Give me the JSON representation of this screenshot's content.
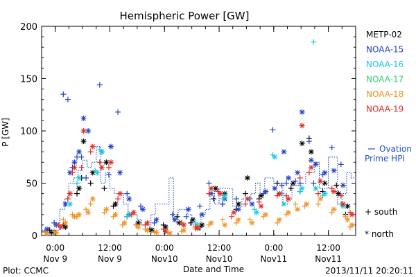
{
  "chart_data": {
    "type": "scatter",
    "title": "Hemispheric Power [GW]",
    "xlabel": "Date and Time",
    "ylabel": "P [GW]",
    "ylim": [
      0,
      200
    ],
    "y_ticks": [
      0,
      50,
      100,
      150,
      200
    ],
    "xlim": [
      "2013-11-08 21:00",
      "2013-11-11 18:00"
    ],
    "x_ticks": [
      {
        "t": "2013-11-09 00:00",
        "time": "0:00",
        "date": "Nov 9"
      },
      {
        "t": "2013-11-09 12:00",
        "time": "12:00",
        "date": "Nov 9"
      },
      {
        "t": "2013-11-10 00:00",
        "time": "0:00",
        "date": "Nov10"
      },
      {
        "t": "2013-11-10 12:00",
        "time": "12:00",
        "date": "Nov10"
      },
      {
        "t": "2013-11-11 00:00",
        "time": "0:00",
        "date": "Nov11"
      },
      {
        "t": "2013-11-11 12:00",
        "time": "12:00",
        "date": "Nov11"
      }
    ],
    "legend": {
      "placement": "right",
      "marker_south": "+ south",
      "marker_north": "* north"
    },
    "ovation": {
      "name": "Ovation Prime HPI",
      "label_line1": "Ovation",
      "label_line2": "Prime HPI",
      "color": "#1f4fd0",
      "x": [
        "2013-11-08 21:00",
        "2013-11-09 01:00",
        "2013-11-09 02:00",
        "2013-11-09 03:00",
        "2013-11-09 04:00",
        "2013-11-09 05:00",
        "2013-11-09 06:00",
        "2013-11-09 07:00",
        "2013-11-09 08:00",
        "2013-11-09 09:00",
        "2013-11-09 10:00",
        "2013-11-09 11:00",
        "2013-11-09 12:00",
        "2013-11-09 13:00",
        "2013-11-09 15:00",
        "2013-11-09 16:00",
        "2013-11-09 18:00",
        "2013-11-09 19:00",
        "2013-11-09 21:00",
        "2013-11-09 22:00",
        "2013-11-10 01:00",
        "2013-11-10 02:00",
        "2013-11-10 03:00",
        "2013-11-10 05:00",
        "2013-11-10 06:00",
        "2013-11-10 07:00",
        "2013-11-10 08:00",
        "2013-11-10 09:00",
        "2013-11-10 10:00",
        "2013-11-10 11:00",
        "2013-11-10 12:00",
        "2013-11-10 15:00",
        "2013-11-10 17:00",
        "2013-11-10 19:00",
        "2013-11-10 20:00",
        "2013-11-10 21:00",
        "2013-11-10 22:00",
        "2013-11-11 00:00",
        "2013-11-11 02:00",
        "2013-11-11 03:00",
        "2013-11-11 04:00",
        "2013-11-11 06:00",
        "2013-11-11 07:00",
        "2013-11-11 09:00",
        "2013-11-11 10:00",
        "2013-11-11 12:00",
        "2013-11-11 14:00",
        "2013-11-11 15:00",
        "2013-11-11 16:00",
        "2013-11-11 17:00",
        "2013-11-11 18:00"
      ],
      "values": [
        5,
        25,
        35,
        50,
        55,
        62,
        72,
        65,
        70,
        85,
        50,
        60,
        45,
        40,
        30,
        20,
        15,
        10,
        20,
        30,
        55,
        15,
        25,
        20,
        10,
        5,
        20,
        25,
        45,
        30,
        45,
        28,
        35,
        40,
        50,
        40,
        55,
        50,
        30,
        35,
        48,
        50,
        60,
        70,
        45,
        75,
        30,
        40,
        60,
        55,
        50
      ]
    },
    "series": [
      {
        "name": "METP-02",
        "color": "#000000",
        "x": [
          "2013-11-08 23:00",
          "2013-11-09 02:00",
          "2013-11-09 05:00",
          "2013-11-09 06:00",
          "2013-11-09 08:00",
          "2013-11-09 11:00",
          "2013-11-09 13:00",
          "2013-11-09 16:00",
          "2013-11-09 18:00",
          "2013-11-09 21:00",
          "2013-11-10 00:00",
          "2013-11-10 03:00",
          "2013-11-10 06:00",
          "2013-11-10 08:00",
          "2013-11-10 11:00",
          "2013-11-10 13:00",
          "2013-11-10 16:00",
          "2013-11-10 18:00",
          "2013-11-10 21:00",
          "2013-11-11 01:00",
          "2013-11-11 04:00",
          "2013-11-11 06:00",
          "2013-11-11 08:00",
          "2013-11-11 11:00",
          "2013-11-11 14:00",
          "2013-11-11 16:00"
        ],
        "north": [
          3,
          8,
          45,
          90,
          60,
          70,
          30,
          20,
          12,
          5,
          8,
          12,
          15,
          10,
          45,
          40,
          30,
          55,
          38,
          40,
          50,
          88,
          80,
          50,
          40,
          28
        ],
        "south": [
          5,
          10,
          40,
          55,
          50,
          45,
          28,
          18,
          10,
          6,
          10,
          18,
          12,
          8,
          35,
          30,
          25,
          40,
          35,
          50,
          45,
          42,
          93,
          42,
          48,
          20
        ]
      },
      {
        "name": "NOAA-15",
        "color": "#1a3fcc",
        "x": [
          "2013-11-08 22:00",
          "2013-11-09 00:00",
          "2013-11-09 02:00",
          "2013-11-09 03:00",
          "2013-11-09 04:00",
          "2013-11-09 05:00",
          "2013-11-09 06:00",
          "2013-11-09 07:00",
          "2013-11-09 10:00",
          "2013-11-09 12:00",
          "2013-11-09 14:00",
          "2013-11-09 16:00",
          "2013-11-09 19:00",
          "2013-11-09 22:00",
          "2013-11-10 02:00",
          "2013-11-10 05:00",
          "2013-11-10 08:00",
          "2013-11-10 10:00",
          "2013-11-10 13:00",
          "2013-11-10 16:00",
          "2013-11-10 19:00",
          "2013-11-10 22:00",
          "2013-11-11 00:00",
          "2013-11-11 02:00",
          "2013-11-11 03:00",
          "2013-11-11 05:00",
          "2013-11-11 06:00",
          "2013-11-11 08:00",
          "2013-11-11 09:00",
          "2013-11-11 11:00",
          "2013-11-11 13:00",
          "2013-11-11 15:00"
        ],
        "north": [
          6,
          10,
          30,
          60,
          70,
          80,
          112,
          100,
          80,
          85,
          60,
          35,
          25,
          15,
          15,
          25,
          20,
          40,
          35,
          25,
          30,
          42,
          45,
          80,
          55,
          60,
          118,
          72,
          68,
          60,
          62,
          48
        ],
        "south": [
          4,
          12,
          135,
          130,
          65,
          75,
          75,
          55,
          144,
          58,
          118,
          40,
          28,
          12,
          20,
          18,
          28,
          50,
          30,
          35,
          35,
          40,
          101,
          48,
          50,
          52,
          50,
          90,
          50,
          58,
          84,
          68
        ]
      },
      {
        "name": "NOAA-16",
        "color": "#18c8e0",
        "x": [
          "2013-11-09 03:00",
          "2013-11-09 05:00",
          "2013-11-09 09:00",
          "2013-11-09 10:00",
          "2013-11-09 16:00",
          "2013-11-10 07:00",
          "2013-11-10 13:00",
          "2013-11-10 20:00",
          "2013-11-11 00:00",
          "2013-11-11 02:00",
          "2013-11-11 06:00",
          "2013-11-11 09:00",
          "2013-11-11 11:00",
          "2013-11-11 15:00"
        ],
        "north": [
          30,
          55,
          60,
          80,
          20,
          10,
          38,
          22,
          75,
          30,
          45,
          45,
          40,
          28
        ],
        "south": [
          35,
          50,
          62,
          82,
          18,
          12,
          35,
          25,
          77,
          40,
          42,
          185,
          38,
          30
        ]
      },
      {
        "name": "NOAA-17",
        "color": "#2fd070",
        "x": [],
        "north": [],
        "south": []
      },
      {
        "name": "NOAA-18",
        "color": "#f09020",
        "x": [
          "2013-11-08 22:00",
          "2013-11-09 00:00",
          "2013-11-09 02:00",
          "2013-11-09 04:00",
          "2013-11-09 05:00",
          "2013-11-09 07:00",
          "2013-11-09 08:00",
          "2013-11-09 11:00",
          "2013-11-09 13:00",
          "2013-11-09 15:00",
          "2013-11-09 18:00",
          "2013-11-09 20:00",
          "2013-11-09 22:00",
          "2013-11-10 01:00",
          "2013-11-10 04:00",
          "2013-11-10 07:00",
          "2013-11-10 10:00",
          "2013-11-10 13:00",
          "2013-11-10 16:00",
          "2013-11-10 19:00",
          "2013-11-10 22:00",
          "2013-11-11 01:00",
          "2013-11-11 03:00",
          "2013-11-11 05:00",
          "2013-11-11 07:00",
          "2013-11-11 10:00",
          "2013-11-11 13:00",
          "2013-11-11 16:00",
          "2013-11-11 17:00"
        ],
        "north": [
          2,
          3,
          12,
          18,
          20,
          22,
          35,
          25,
          20,
          12,
          8,
          5,
          3,
          2,
          5,
          8,
          12,
          10,
          15,
          12,
          20,
          15,
          22,
          25,
          30,
          35,
          25,
          15,
          10
        ],
        "south": [
          3,
          4,
          15,
          20,
          18,
          25,
          30,
          22,
          18,
          10,
          10,
          6,
          4,
          3,
          4,
          6,
          10,
          15,
          12,
          15,
          18,
          12,
          20,
          30,
          28,
          30,
          22,
          18,
          8
        ]
      },
      {
        "name": "NOAA-19",
        "color": "#e0281e",
        "x": [
          "2013-11-09 01:00",
          "2013-11-09 03:00",
          "2013-11-09 04:00",
          "2013-11-09 06:00",
          "2013-11-09 08:00",
          "2013-11-09 10:00",
          "2013-11-09 12:00",
          "2013-11-09 14:00",
          "2013-11-09 17:00",
          "2013-11-09 20:00",
          "2013-11-10 00:00",
          "2013-11-10 04:00",
          "2013-11-10 07:00",
          "2013-11-10 10:00",
          "2013-11-10 12:00",
          "2013-11-10 15:00",
          "2013-11-10 18:00",
          "2013-11-10 21:00",
          "2013-11-11 01:00",
          "2013-11-11 03:00",
          "2013-11-11 06:00",
          "2013-11-11 08:00",
          "2013-11-11 10:00",
          "2013-11-11 13:00",
          "2013-11-11 15:00",
          "2013-11-11 17:00"
        ],
        "north": [
          8,
          40,
          65,
          100,
          85,
          65,
          70,
          40,
          22,
          12,
          4,
          10,
          7,
          45,
          40,
          22,
          35,
          28,
          40,
          35,
          105,
          65,
          52,
          42,
          30,
          20
        ],
        "south": [
          10,
          35,
          60,
          65,
          80,
          70,
          65,
          35,
          20,
          10,
          6,
          12,
          8,
          40,
          42,
          18,
          30,
          32,
          38,
          38,
          55,
          60,
          40,
          45,
          38,
          22
        ]
      }
    ]
  },
  "footer": {
    "left": "Plot: CCMC",
    "right": "2013/11/11 20:20:11"
  }
}
